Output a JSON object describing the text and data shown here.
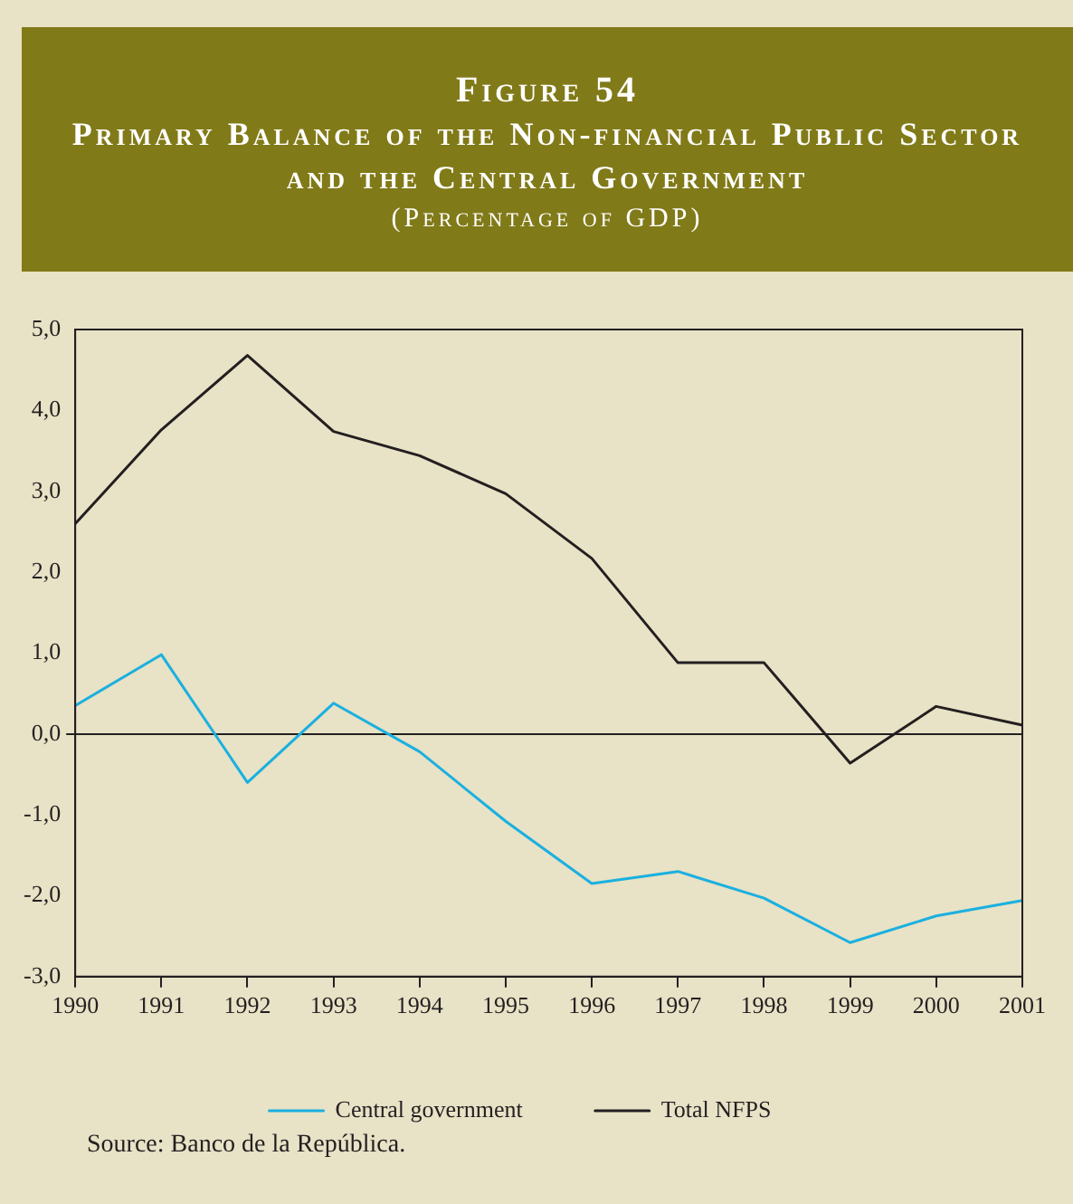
{
  "chart_data": {
    "type": "line",
    "title": "Figure 54",
    "subtitle": "Primary Balance of the Non-financial Public Sector and the Central Government\n(Percentage of GDP)",
    "categories": [
      "1990",
      "1991",
      "1992",
      "1993",
      "1994",
      "1995",
      "1996",
      "1997",
      "1998",
      "1999",
      "2000",
      "2001"
    ],
    "series": [
      {
        "name": "Central government",
        "color": "#1ab0e0",
        "values": [
          0.35,
          0.98,
          -0.6,
          0.38,
          -0.22,
          -1.08,
          -1.85,
          -1.7,
          -2.03,
          -2.58,
          -2.25,
          -2.06
        ]
      },
      {
        "name": "Total NFPS",
        "color": "#231f20",
        "values": [
          2.6,
          3.76,
          4.68,
          3.74,
          3.44,
          2.97,
          2.17,
          0.88,
          0.88,
          -0.36,
          0.34,
          0.11
        ]
      }
    ],
    "ylim": [
      -3,
      5
    ],
    "yticks": [
      {
        "value": -3,
        "label": "-3,0"
      },
      {
        "value": -2,
        "label": "-2,0"
      },
      {
        "value": -1,
        "label": "-1,0"
      },
      {
        "value": 0,
        "label": "0,0"
      },
      {
        "value": 1,
        "label": "1,0"
      },
      {
        "value": 2,
        "label": "2,0"
      },
      {
        "value": 3,
        "label": "3,0"
      },
      {
        "value": 4,
        "label": "4,0"
      },
      {
        "value": 5,
        "label": "5,0"
      }
    ],
    "legend": "bottom",
    "marker": "none",
    "line_style": "solid",
    "annotations": [
      "Source: Banco de la República."
    ]
  }
}
